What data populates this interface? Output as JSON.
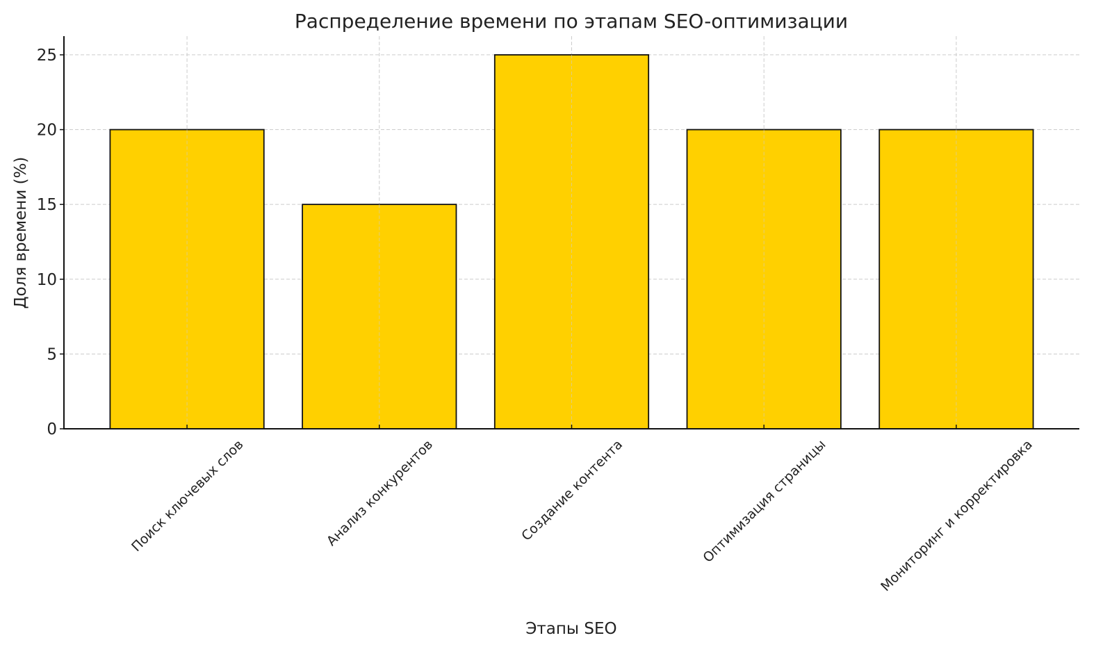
{
  "chart_data": {
    "type": "bar",
    "title": "Распределение времени по этапам SEO-оптимизации",
    "xlabel": "Этапы SEO",
    "ylabel": "Доля времени (%)",
    "categories": [
      "Поиск ключевых слов",
      "Анализ конкурентов",
      "Создание контента",
      "Оптимизация страницы",
      "Мониторинг и корректировка"
    ],
    "values": [
      20,
      15,
      25,
      20,
      20
    ],
    "ylim": [
      0,
      26.25
    ],
    "yticks": [
      0,
      5,
      10,
      15,
      20,
      25
    ],
    "grid": true,
    "x_tick_rotation": 45,
    "colors": {
      "bar": "#FFD000",
      "edge": "#111111",
      "grid": "#cccccc"
    }
  }
}
